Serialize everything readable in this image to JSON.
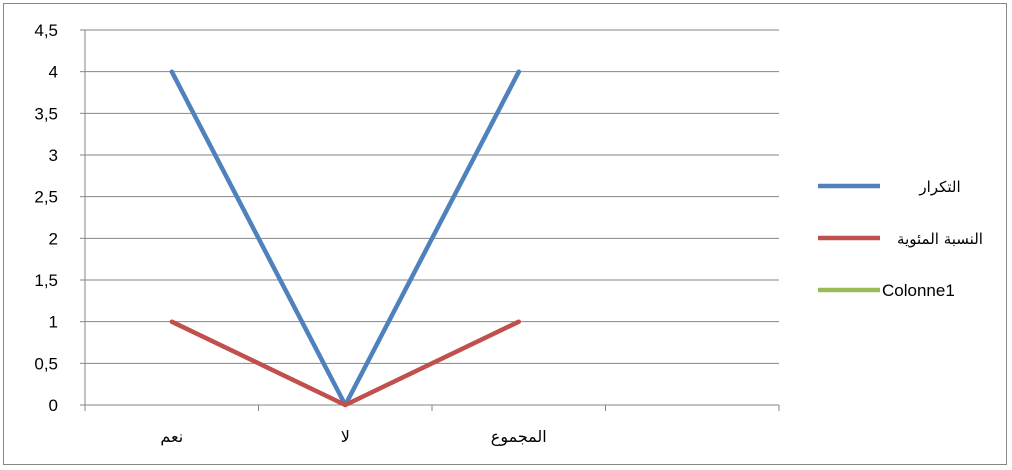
{
  "chart_data": {
    "type": "line",
    "categories": [
      "نعم",
      "لا",
      "المجموع",
      ""
    ],
    "series": [
      {
        "name": "التكرار",
        "color": "#4F81BD",
        "values": [
          4,
          0,
          4,
          null
        ]
      },
      {
        "name": "النسبة المئوية",
        "color": "#C0504D",
        "values": [
          1,
          0,
          1,
          null
        ]
      },
      {
        "name": "Colonne1",
        "color": "#9BBB59",
        "values": [
          null,
          null,
          null,
          null
        ]
      }
    ],
    "yticks": [
      "0",
      "0,5",
      "1",
      "1,5",
      "2",
      "2,5",
      "3",
      "3,5",
      "4",
      "4,5"
    ],
    "ylim": [
      0,
      4.5
    ],
    "grid": true,
    "legend_position": "right",
    "title": "",
    "xlabel": "",
    "ylabel": ""
  }
}
